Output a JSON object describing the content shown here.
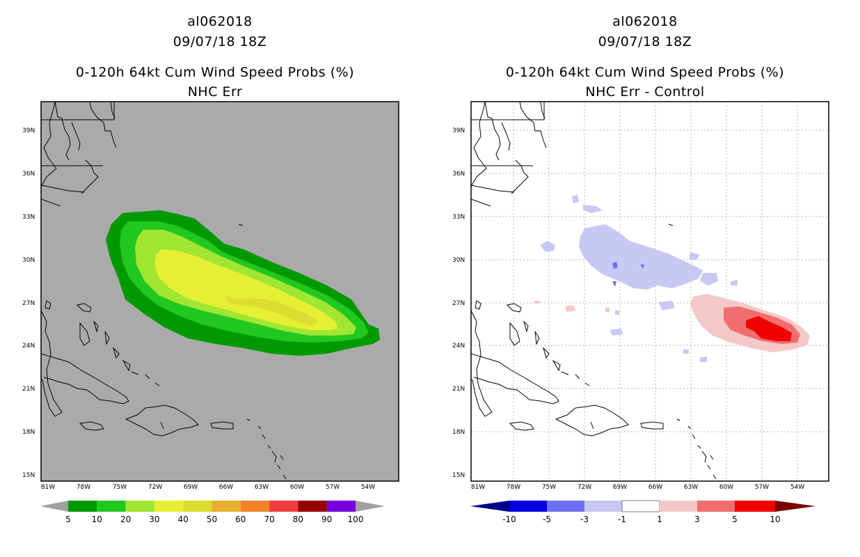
{
  "panels": [
    {
      "id": "left",
      "title_lines": [
        "al062018",
        "09/07/18 18Z",
        "0-120h 64kt Cum Wind Speed Probs (%)",
        "NHC Err"
      ],
      "lon_ticks": [
        "81W",
        "78W",
        "75W",
        "72W",
        "69W",
        "66W",
        "63W",
        "60W",
        "57W",
        "54W"
      ],
      "lat_ticks": [
        "39N",
        "36N",
        "33N",
        "30N",
        "27N",
        "24N",
        "21N",
        "18N",
        "15N"
      ],
      "colorbar": {
        "labels": [
          "5",
          "10",
          "20",
          "30",
          "40",
          "50",
          "60",
          "70",
          "80",
          "90",
          "100"
        ],
        "colors": [
          "#009a00",
          "#20c820",
          "#a0e632",
          "#e6f032",
          "#dcdc32",
          "#e6af2d",
          "#f08228",
          "#f03c3c",
          "#960000",
          "#7800dc"
        ],
        "left_arrow_color": "#a0a0a0",
        "right_arrow_color": "#a0a0a0"
      },
      "background": "#aaaaaa",
      "fill_colors": {
        "p5": "#009a00",
        "p10": "#20c820",
        "p20": "#a0e632",
        "p30": "#e6f032"
      }
    },
    {
      "id": "right",
      "title_lines": [
        "al062018",
        "09/07/18 18Z",
        "0-120h 64kt Cum Wind Speed Probs (%)",
        "NHC Err - Control"
      ],
      "lon_ticks": [
        "81W",
        "78W",
        "75W",
        "72W",
        "69W",
        "66W",
        "63W",
        "60W",
        "57W",
        "54W"
      ],
      "lat_ticks": [
        "39N",
        "36N",
        "33N",
        "30N",
        "27N",
        "24N",
        "21N",
        "18N",
        "15N"
      ],
      "colorbar": {
        "labels": [
          "-10",
          "-5",
          "-3",
          "-1",
          "1",
          "3",
          "5",
          "10"
        ],
        "colors": [
          "#0000dc",
          "#6e6ef0",
          "#c8c8f5",
          "#ffffff",
          "#f5c8c8",
          "#f06e6e",
          "#f00000"
        ],
        "left_arrow_color": "#00008c",
        "right_arrow_color": "#780000"
      },
      "background": "#ffffff",
      "fill_colors": {
        "neg1": "#c8c8f5",
        "neg3": "#6e6ef0",
        "pos1": "#f5c8c8",
        "pos3": "#f06e6e",
        "pos5": "#f00000"
      }
    }
  ]
}
